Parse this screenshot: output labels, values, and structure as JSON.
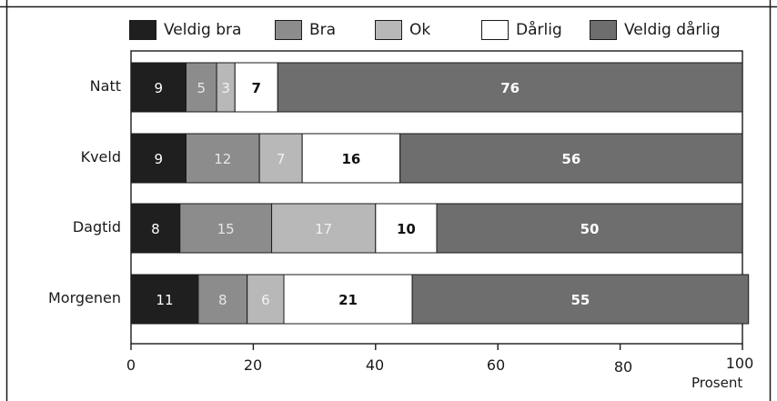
{
  "chart_data": {
    "type": "bar",
    "orientation": "horizontal",
    "stacked": true,
    "categories": [
      "Natt",
      "Kveld",
      "Dagtid",
      "Morgenen"
    ],
    "series": [
      {
        "name": "Veldig bra",
        "color": "#1f1f1f",
        "label_color": "#ffffff",
        "label_bold": false,
        "values": [
          9,
          9,
          8,
          11
        ]
      },
      {
        "name": "Bra",
        "color": "#8c8c8c",
        "label_color": "#e6e6e6",
        "label_bold": false,
        "values": [
          5,
          12,
          15,
          8
        ]
      },
      {
        "name": "Ok",
        "color": "#b8b8b8",
        "label_color": "#f2f2f2",
        "label_bold": false,
        "values": [
          3,
          7,
          17,
          6
        ]
      },
      {
        "name": "Dårlig",
        "color": "#ffffff",
        "label_color": "#111111",
        "label_bold": true,
        "values": [
          7,
          16,
          10,
          21
        ]
      },
      {
        "name": "Veldig dårlig",
        "color": "#6e6e6e",
        "label_color": "#ffffff",
        "label_bold": true,
        "values": [
          76,
          56,
          50,
          55
        ]
      }
    ],
    "xlim": [
      0,
      100
    ],
    "xticks": [
      0,
      20,
      40,
      60,
      80,
      100
    ],
    "xlabel": "Prosent",
    "legend_position": "top",
    "grid": false
  }
}
